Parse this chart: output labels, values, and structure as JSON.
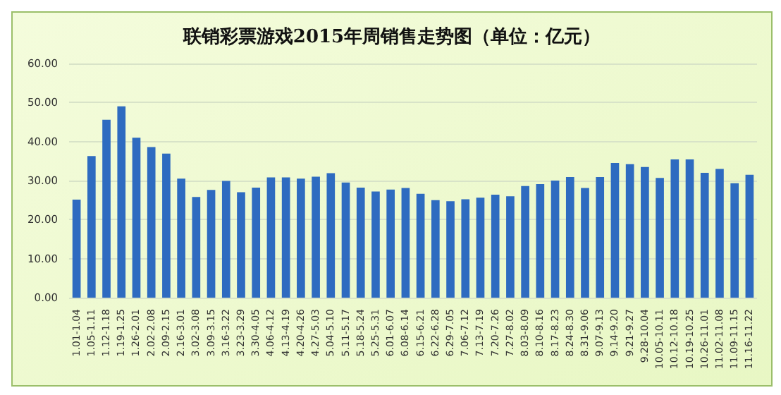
{
  "chart_data": {
    "type": "bar",
    "title": "联销彩票游戏2015年周销售走势图（单位：亿元）",
    "categories": [
      "1.01-1.04",
      "1.05-1.11",
      "1.12-1.18",
      "1.19-1.25",
      "1.26-2.01",
      "2.02-2.08",
      "2.09-2.15",
      "2.16-3.01",
      "3.02-3.08",
      "3.09-3.15",
      "3.16-3.22",
      "3.23-3.29",
      "3.30-4.05",
      "4.06-4.12",
      "4.13-4.19",
      "4.20-4.26",
      "4.27-5.03",
      "5.04-5.10",
      "5.11-5.17",
      "5.18-5.24",
      "5.25-5.31",
      "6.01-6.07",
      "6.08-6.14",
      "6.15-6.21",
      "6.22-6.28",
      "6.29-7.05",
      "7.06-7.12",
      "7.13-7.19",
      "7.20-7.26",
      "7.27-8.02",
      "8.03-8.09",
      "8.10-8.16",
      "8.17-8.23",
      "8.24-8.30",
      "8.31-9.06",
      "9.07-9.13",
      "9.14-9.20",
      "9.21-9.27",
      "9.28-10.04",
      "10.05-10.11",
      "10.12-10.18",
      "10.19-10.25",
      "10.26-11.01",
      "11.02-11.08",
      "11.09-11.15",
      "11.16-11.22"
    ],
    "values": [
      25.1,
      36.3,
      45.6,
      49.0,
      41.0,
      38.6,
      36.9,
      30.5,
      25.8,
      27.6,
      29.9,
      27.0,
      28.2,
      30.8,
      30.8,
      30.5,
      31.0,
      31.9,
      29.5,
      28.2,
      27.2,
      27.7,
      28.1,
      26.6,
      25.0,
      24.7,
      25.2,
      25.6,
      26.4,
      26.0,
      28.6,
      29.1,
      30.0,
      30.9,
      28.1,
      30.9,
      34.5,
      34.2,
      33.5,
      30.7,
      35.4,
      35.4,
      32.0,
      33.0,
      29.3,
      31.5
    ],
    "color": "#2e6bc0",
    "ylim": [
      0,
      60
    ],
    "yticks": [
      {
        "value": 0,
        "label": "0.00"
      },
      {
        "value": 10,
        "label": "10.00"
      },
      {
        "value": 20,
        "label": "20.00"
      },
      {
        "value": 30,
        "label": "30.00"
      },
      {
        "value": 40,
        "label": "40.00"
      },
      {
        "value": 50,
        "label": "50.00"
      },
      {
        "value": 60,
        "label": "60.00"
      }
    ],
    "grid": "y"
  }
}
